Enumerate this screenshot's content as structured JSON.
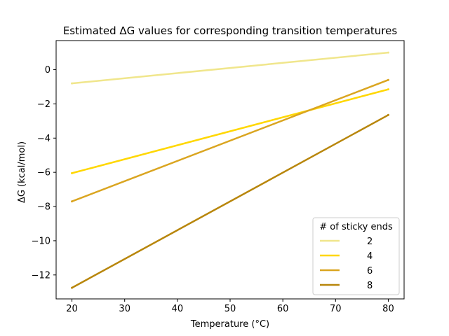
{
  "chart_data": {
    "type": "line",
    "title": "Estimated ΔG values for corresponding transition temperatures",
    "xlabel": "Temperature (°C)",
    "ylabel": "ΔG (kcal/mol)",
    "xlim": [
      17,
      83
    ],
    "ylim": [
      -13.4,
      1.7
    ],
    "xticks": [
      20,
      30,
      40,
      50,
      60,
      70,
      80
    ],
    "yticks": [
      -12,
      -10,
      -8,
      -6,
      -4,
      -2,
      0
    ],
    "grid": false,
    "legend": {
      "title": "# of sticky ends",
      "placement": "lower-right"
    },
    "series": [
      {
        "name": "2",
        "color": "#f0e68c",
        "x": [
          20,
          80
        ],
        "y": [
          -0.8,
          1.0
        ]
      },
      {
        "name": "4",
        "color": "#ffd700",
        "x": [
          20,
          80
        ],
        "y": [
          -6.05,
          -1.15
        ]
      },
      {
        "name": "6",
        "color": "#daa520",
        "x": [
          20,
          80
        ],
        "y": [
          -7.7,
          -0.6
        ]
      },
      {
        "name": "8",
        "color": "#b8860b",
        "x": [
          20,
          80
        ],
        "y": [
          -12.75,
          -2.65
        ]
      }
    ]
  }
}
